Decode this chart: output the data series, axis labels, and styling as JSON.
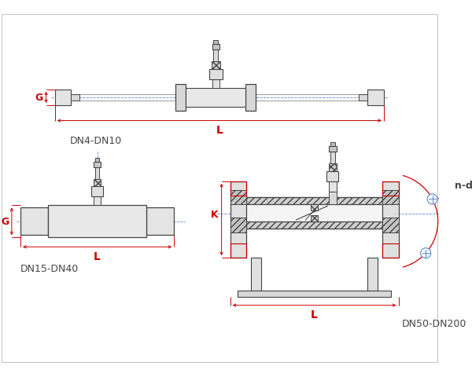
{
  "bg_color": "#ffffff",
  "line_color": "#444444",
  "red_color": "#cc0000",
  "blue_color": "#5588cc",
  "label_DN4": "DN4-DN10",
  "label_DN15": "DN15-DN40",
  "label_DN50": "DN50-DN200",
  "label_G": "G",
  "label_L": "L",
  "label_K": "K",
  "label_nd": "n-d",
  "figw": 6.0,
  "figh": 4.81,
  "dpi": 100
}
